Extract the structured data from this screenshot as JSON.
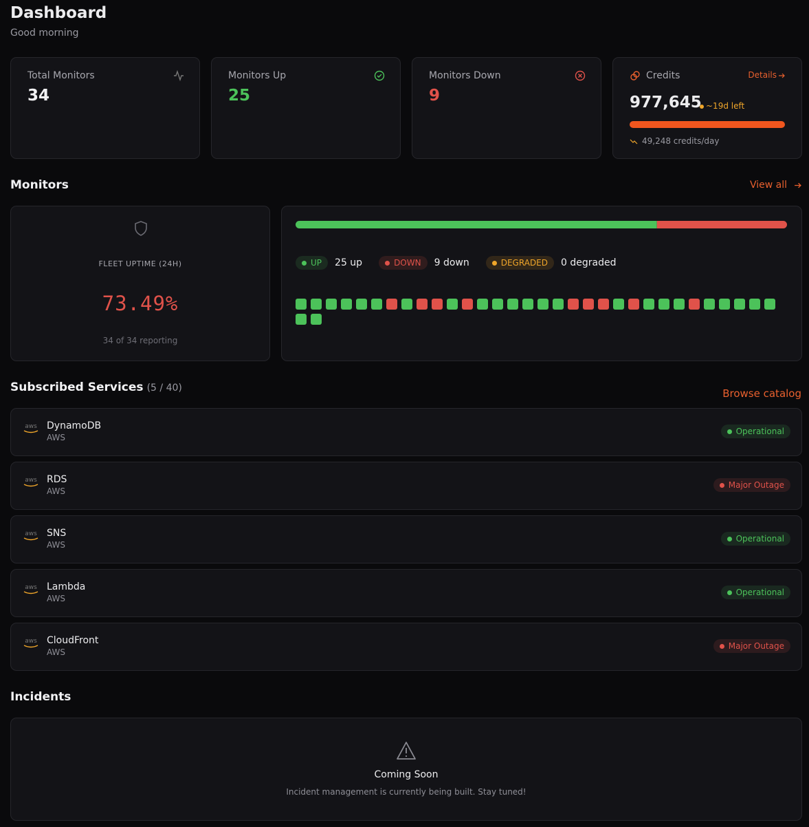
{
  "header": {
    "title": "Dashboard",
    "subtitle": "Good morning"
  },
  "stats": [
    {
      "label": "Total Monitors",
      "value": "34"
    },
    {
      "label": "Monitors Up",
      "value": "25"
    },
    {
      "label": "Monitors Down",
      "value": "9"
    }
  ],
  "credits": {
    "label": "Credits",
    "link": "Details",
    "value": "977,645",
    "left": "~19d left",
    "rate": "49,248 credits/day"
  },
  "monitors": {
    "title": "Monitors",
    "link": "View all",
    "fleet_label": "FLEET UPTIME (24H)",
    "uptime": "73.49%",
    "reporting": "34 of 34 reporting",
    "segments": [
      {
        "status": "UP",
        "count": 25,
        "label": "25 up",
        "color": "#4cc25a"
      },
      {
        "status": "DOWN",
        "count": 9,
        "label": "9 down",
        "color": "#e0524a"
      },
      {
        "status": "DEGRADED",
        "count": 0,
        "label": "0 degraded",
        "color": "#f0a62a"
      }
    ],
    "monitor_statuses": [
      "UP",
      "UP",
      "UP",
      "UP",
      "UP",
      "UP",
      "DOWN",
      "UP",
      "DOWN",
      "DOWN",
      "UP",
      "DOWN",
      "UP",
      "UP",
      "UP",
      "UP",
      "UP",
      "UP",
      "DOWN",
      "DOWN",
      "DOWN",
      "UP",
      "DOWN",
      "UP",
      "UP",
      "UP",
      "DOWN",
      "UP",
      "UP",
      "UP",
      "UP",
      "UP",
      "UP",
      "UP"
    ]
  },
  "services": {
    "title": "Subscribed Services",
    "count": "(5 / 40)",
    "link": "Browse catalog",
    "items": [
      {
        "logo": "aws",
        "name": "DynamoDB",
        "provider": "AWS",
        "status": "Operational"
      },
      {
        "logo": "aws",
        "name": "RDS",
        "provider": "AWS",
        "status": "Major Outage"
      },
      {
        "logo": "aws",
        "name": "SNS",
        "provider": "AWS",
        "status": "Operational"
      },
      {
        "logo": "aws",
        "name": "Lambda",
        "provider": "AWS",
        "status": "Operational"
      },
      {
        "logo": "aws",
        "name": "CloudFront",
        "provider": "AWS",
        "status": "Major Outage"
      }
    ]
  },
  "incidents": {
    "title": "Incidents",
    "heading": "Coming Soon",
    "message": "Incident management is currently being built. Stay tuned!"
  }
}
